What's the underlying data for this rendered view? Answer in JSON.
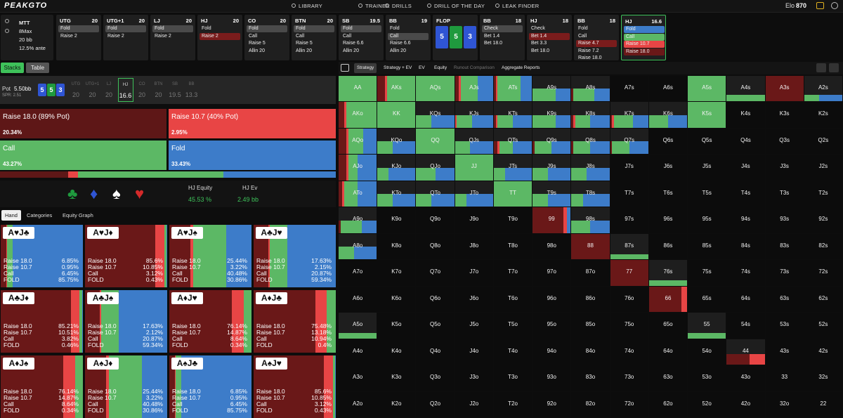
{
  "nav": {
    "logo": "PEAKGTO",
    "links": [
      "LIBRARY",
      "TRAINER",
      "DRILLS",
      "DRILL OF THE DAY",
      "LEAK FINDER"
    ],
    "elo_label": "Elo",
    "elo": "870"
  },
  "game": [
    "MTT",
    "8Max",
    "20 bb",
    "12.5% ante"
  ],
  "action_cards": [
    {
      "pos": "UTG",
      "stack": "20",
      "actions": [
        "Fold",
        "Raise 2"
      ],
      "colors": [
        "#4a4a4a",
        null
      ]
    },
    {
      "pos": "UTG+1",
      "stack": "20",
      "actions": [
        "Fold",
        "Raise 2"
      ],
      "colors": [
        "#4a4a4a",
        null
      ]
    },
    {
      "pos": "LJ",
      "stack": "20",
      "actions": [
        "Fold",
        "Raise 2"
      ],
      "colors": [
        "#4a4a4a",
        null
      ]
    },
    {
      "pos": "HJ",
      "stack": "20",
      "actions": [
        "Fold",
        "Raise 2"
      ],
      "colors": [
        null,
        "#7a1c1c"
      ]
    },
    {
      "pos": "CO",
      "stack": "20",
      "actions": [
        "Fold",
        "Call",
        "Raise 5",
        "Allin 20"
      ],
      "colors": [
        "#4a4a4a",
        null,
        null,
        null
      ]
    },
    {
      "pos": "BTN",
      "stack": "20",
      "actions": [
        "Fold",
        "Call",
        "Raise 5",
        "Allin 20"
      ],
      "colors": [
        "#4a4a4a",
        null,
        null,
        null
      ]
    },
    {
      "pos": "SB",
      "stack": "19.5",
      "actions": [
        "Fold",
        "Call",
        "Raise 6.6",
        "Allin 20"
      ],
      "colors": [
        "#4a4a4a",
        null,
        null,
        null
      ]
    },
    {
      "pos": "BB",
      "stack": "19",
      "actions": [
        "Fold",
        "Call",
        "Raise 6.6",
        "Allin 20"
      ],
      "colors": [
        null,
        "#4a4a4a",
        null,
        null
      ]
    },
    {
      "pos": "FLOP",
      "cards": [
        "5",
        "5",
        "3"
      ],
      "card_colors": [
        "#2f55d4",
        "#1f9a3e",
        "#2f55d4"
      ]
    },
    {
      "pos": "BB",
      "stack": "18",
      "actions": [
        "Check",
        "Bet 1.4",
        "Bet 18.0"
      ],
      "colors": [
        "#4a4a4a",
        null,
        null
      ]
    },
    {
      "pos": "HJ",
      "stack": "18",
      "actions": [
        "Check",
        "Bet 1.4",
        "Bet 3.3",
        "Bet 18.0"
      ],
      "colors": [
        null,
        "#7a1c1c",
        null,
        null
      ]
    },
    {
      "pos": "BB",
      "stack": "18",
      "actions": [
        "Fold",
        "Call",
        "Raise 4.7",
        "Raise 7.2",
        "Raise 18.0"
      ],
      "colors": [
        null,
        null,
        "#7a1c1c",
        null,
        null
      ]
    },
    {
      "pos": "HJ",
      "stack": "16.6",
      "actions": [
        "Fold",
        "Call",
        "Raise 10.7",
        "Raise 18.0"
      ],
      "colors": [
        "#3d7cc9",
        "#5cb865",
        "#e84545",
        "#6a1818"
      ],
      "current": true
    }
  ],
  "left_tabs": [
    "Stacks",
    "Table"
  ],
  "pot": {
    "label": "Pot",
    "value": "5.50bb",
    "spr": "SPR: 2.51",
    "cards": [
      "5",
      "5",
      "3"
    ],
    "card_colors": [
      "#2f55d4",
      "#1f9a3e",
      "#2f55d4"
    ],
    "seats": [
      {
        "pos": "UTG",
        "stack": "20"
      },
      {
        "pos": "UTG+1",
        "stack": "20"
      },
      {
        "pos": "LJ",
        "stack": "20"
      },
      {
        "pos": "HJ",
        "stack": "16.6"
      },
      {
        "pos": "CO",
        "stack": "20"
      },
      {
        "pos": "BTN",
        "stack": "20"
      },
      {
        "pos": "SB",
        "stack": "19.5"
      },
      {
        "pos": "BB",
        "stack": "13.3"
      }
    ],
    "active_seat": 3
  },
  "strategy": [
    {
      "name": "Raise 18.0 (89% Pot)",
      "value": 20.34,
      "label": "20.34%",
      "color": "#5e1717"
    },
    {
      "name": "Raise 10.7 (40% Pot)",
      "value": 2.95,
      "label": "2.95%",
      "color": "#e84545"
    },
    {
      "name": "Call",
      "value": 43.27,
      "label": "43.27%",
      "color": "#5cb865"
    },
    {
      "name": "Fold",
      "value": 33.43,
      "label": "33.43%",
      "color": "#3d7cc9"
    }
  ],
  "equity": {
    "suits": [
      "♣",
      "♦",
      "♠",
      "♥"
    ],
    "suit_colors": [
      "#1f9a3e",
      "#2f55d4",
      "#ffffff",
      "#d42a2a"
    ],
    "equity_label": "HJ Equity",
    "equity": "45.53 %",
    "ev_label": "HJ Ev",
    "ev": "2.49 bb"
  },
  "hand_tabs": [
    "Hand",
    "Categories",
    "Equity Graph"
  ],
  "combos": {
    "row_labels": [
      "Raise 18.0",
      "Raise 10.7",
      "Call",
      "FOLD"
    ],
    "hands": [
      {
        "hand": "A♥J♣",
        "values": [
          6.85,
          0.95,
          6.45,
          85.75
        ],
        "value_labels": [
          "6.85%",
          "0.95%",
          "6.45%",
          "85.75%"
        ]
      },
      {
        "hand": "A♥J♦",
        "values": [
          85.6,
          10.85,
          3.12,
          0.43
        ],
        "value_labels": [
          "85.6%",
          "10.85%",
          "3.12%",
          "0.43%"
        ]
      },
      {
        "hand": "A♥J♠",
        "values": [
          25.44,
          3.22,
          40.48,
          30.86
        ],
        "value_labels": [
          "25.44%",
          "3.22%",
          "40.48%",
          "30.86%"
        ]
      },
      {
        "hand": "A♣J♥",
        "values": [
          17.63,
          2.15,
          20.87,
          59.34
        ],
        "value_labels": [
          "17.63%",
          "2.15%",
          "20.87%",
          "59.34%"
        ]
      },
      {
        "hand": "A♣J♦",
        "values": [
          85.21,
          10.51,
          3.82,
          0.46
        ],
        "value_labels": [
          "85.21%",
          "10.51%",
          "3.82%",
          "0.46%"
        ]
      },
      {
        "hand": "A♣J♠",
        "values": [
          17.63,
          2.12,
          20.87,
          59.34
        ],
        "value_labels": [
          "17.63%",
          "2.12%",
          "20.87%",
          "59.34%"
        ]
      },
      {
        "hand": "A♦J♥",
        "values": [
          76.14,
          14.87,
          8.64,
          0.34
        ],
        "value_labels": [
          "76.14%",
          "14.87%",
          "8.64%",
          "0.34%"
        ]
      },
      {
        "hand": "A♦J♣",
        "values": [
          75.48,
          13.18,
          10.94,
          0.4
        ],
        "value_labels": [
          "75.48%",
          "13.18%",
          "10.94%",
          "0.4%"
        ]
      },
      {
        "hand": "A♦J♠",
        "values": [
          76.14,
          14.87,
          8.64,
          0.34
        ],
        "value_labels": [
          "76.14%",
          "14.87%",
          "8.64%",
          "0.34%"
        ]
      },
      {
        "hand": "A♠J♦",
        "values": [
          25.44,
          3.22,
          40.48,
          30.86
        ],
        "value_labels": [
          "25.44%",
          "3.22%",
          "40.48%",
          "30.86%"
        ]
      },
      {
        "hand": "A♠J♣",
        "values": [
          6.85,
          0.95,
          6.45,
          85.75
        ],
        "value_labels": [
          "6.85%",
          "0.95%",
          "6.45%",
          "85.75%"
        ]
      },
      {
        "hand": "A♠J♥",
        "values": [
          85.6,
          10.85,
          3.12,
          0.43
        ],
        "value_labels": [
          "85.6%",
          "10.85%",
          "3.12%",
          "0.43%"
        ]
      }
    ]
  },
  "right_tabs": [
    "Strategy",
    "Strategy + EV",
    "EV",
    "Equity",
    "Runout Comparison",
    "Aggregate Reports"
  ],
  "grid": {
    "labels": [
      [
        "AA",
        "AKs",
        "AQs",
        "AJs",
        "ATs",
        "A9s",
        "A8s",
        "A7s",
        "A6s",
        "A5s",
        "A4s",
        "A3s",
        "A2s"
      ],
      [
        "AKo",
        "KK",
        "KQs",
        "KJs",
        "KTs",
        "K9s",
        "K8s",
        "K7s",
        "K6s",
        "K5s",
        "K4s",
        "K3s",
        "K2s"
      ],
      [
        "AQo",
        "KQo",
        "QQ",
        "QJs",
        "QTs",
        "Q9s",
        "Q8s",
        "Q7s",
        "Q6s",
        "Q5s",
        "Q4s",
        "Q3s",
        "Q2s"
      ],
      [
        "AJo",
        "KJo",
        "QJo",
        "JJ",
        "JTs",
        "J9s",
        "J8s",
        "J7s",
        "J6s",
        "J5s",
        "J4s",
        "J3s",
        "J2s"
      ],
      [
        "ATo",
        "KTo",
        "QTo",
        "JTo",
        "TT",
        "T9s",
        "T8s",
        "T7s",
        "T6s",
        "T5s",
        "T4s",
        "T3s",
        "T2s"
      ],
      [
        "A9o",
        "K9o",
        "Q9o",
        "J9o",
        "T9o",
        "99",
        "98s",
        "97s",
        "96s",
        "95s",
        "94s",
        "93s",
        "92s"
      ],
      [
        "A8o",
        "K8o",
        "Q8o",
        "J8o",
        "T8o",
        "98o",
        "88",
        "87s",
        "86s",
        "85s",
        "84s",
        "83s",
        "82s"
      ],
      [
        "A7o",
        "K7o",
        "Q7o",
        "J7o",
        "T7o",
        "97o",
        "87o",
        "77",
        "76s",
        "75s",
        "74s",
        "73s",
        "72s"
      ],
      [
        "A6o",
        "K6o",
        "Q6o",
        "J6o",
        "T6o",
        "96o",
        "86o",
        "76o",
        "66",
        "65s",
        "64s",
        "63s",
        "62s"
      ],
      [
        "A5o",
        "K5o",
        "Q5o",
        "J5o",
        "T5o",
        "95o",
        "85o",
        "75o",
        "65o",
        "55",
        "54s",
        "53s",
        "52s"
      ],
      [
        "A4o",
        "K4o",
        "Q4o",
        "J4o",
        "T4o",
        "94o",
        "84o",
        "74o",
        "64o",
        "54o",
        "44",
        "43s",
        "42s"
      ],
      [
        "A3o",
        "K3o",
        "Q3o",
        "J3o",
        "T3o",
        "93o",
        "83o",
        "73o",
        "63o",
        "53o",
        "43o",
        "33",
        "32s"
      ],
      [
        "A2o",
        "K2o",
        "Q2o",
        "J2o",
        "T2o",
        "92o",
        "82o",
        "72o",
        "62o",
        "52o",
        "42o",
        "32o",
        "22"
      ]
    ],
    "strategy": [
      [
        [
          0,
          0,
          100,
          0,
          100
        ],
        [
          20,
          5,
          75,
          0,
          100
        ],
        [
          0,
          0,
          100,
          0,
          100
        ],
        [
          10,
          5,
          45,
          40,
          100
        ],
        [
          5,
          5,
          60,
          30,
          100
        ],
        [
          0,
          0,
          60,
          40,
          50
        ],
        [
          5,
          0,
          55,
          40,
          50
        ],
        null,
        null,
        [
          0,
          0,
          100,
          0,
          100
        ],
        [
          0,
          0,
          100,
          0,
          25
        ],
        [
          100,
          0,
          0,
          0,
          100
        ],
        [
          0,
          0,
          40,
          60,
          25
        ]
      ],
      [
        [
          15,
          5,
          80,
          0,
          100
        ],
        [
          0,
          0,
          100,
          0,
          100
        ],
        [
          0,
          0,
          40,
          60,
          50
        ],
        [
          0,
          5,
          40,
          55,
          50
        ],
        [
          5,
          5,
          40,
          50,
          50
        ],
        [
          0,
          0,
          60,
          40,
          50
        ],
        [
          5,
          5,
          40,
          50,
          50
        ],
        [
          5,
          5,
          50,
          40,
          50
        ],
        [
          0,
          0,
          50,
          50,
          50
        ],
        [
          0,
          0,
          100,
          0,
          100
        ],
        null,
        null,
        null
      ],
      [
        [
          20,
          5,
          40,
          35,
          100
        ],
        [
          0,
          0,
          40,
          60,
          50
        ],
        [
          0,
          0,
          100,
          0,
          100
        ],
        [
          0,
          0,
          40,
          60,
          50
        ],
        [
          10,
          5,
          35,
          50,
          50
        ],
        [
          5,
          0,
          45,
          50,
          50
        ],
        [
          5,
          0,
          45,
          50,
          50
        ],
        [
          5,
          0,
          45,
          50,
          50
        ],
        null,
        null,
        null,
        null,
        null
      ],
      [
        [
          20,
          5,
          25,
          50,
          100
        ],
        [
          0,
          0,
          30,
          70,
          50
        ],
        [
          0,
          0,
          50,
          50,
          50
        ],
        [
          0,
          0,
          100,
          0,
          100
        ],
        [
          0,
          0,
          30,
          70,
          50
        ],
        [
          0,
          0,
          40,
          60,
          50
        ],
        [
          0,
          0,
          40,
          60,
          50
        ],
        null,
        null,
        null,
        null,
        null,
        null
      ],
      [
        [
          10,
          5,
          35,
          50,
          100
        ],
        [
          0,
          0,
          40,
          60,
          50
        ],
        [
          0,
          0,
          40,
          60,
          50
        ],
        [
          0,
          0,
          30,
          70,
          50
        ],
        [
          0,
          0,
          100,
          0,
          100
        ],
        [
          0,
          0,
          40,
          60,
          50
        ],
        [
          0,
          0,
          30,
          70,
          50
        ],
        null,
        null,
        null,
        null,
        null,
        null
      ],
      [
        [
          5,
          0,
          55,
          40,
          50
        ],
        null,
        null,
        null,
        null,
        [
          80,
          10,
          0,
          10,
          100
        ],
        [
          0,
          0,
          50,
          50,
          50
        ],
        null,
        null,
        null,
        null,
        null,
        null
      ],
      [
        [
          0,
          0,
          40,
          60,
          50
        ],
        null,
        null,
        null,
        null,
        null,
        [
          100,
          0,
          0,
          0,
          100
        ],
        [
          0,
          0,
          100,
          0,
          20
        ],
        null,
        null,
        null,
        null,
        null
      ],
      [
        null,
        null,
        null,
        null,
        null,
        null,
        null,
        [
          100,
          0,
          0,
          0,
          100
        ],
        [
          0,
          0,
          100,
          0,
          20
        ],
        null,
        null,
        null,
        null
      ],
      [
        null,
        null,
        null,
        null,
        null,
        null,
        null,
        null,
        [
          85,
          15,
          0,
          0,
          100
        ],
        null,
        null,
        null,
        null
      ],
      [
        [
          0,
          0,
          100,
          0,
          20
        ],
        null,
        null,
        null,
        null,
        null,
        null,
        null,
        null,
        [
          0,
          0,
          100,
          0,
          20
        ],
        null,
        null,
        null
      ],
      [
        null,
        null,
        null,
        null,
        null,
        null,
        null,
        null,
        null,
        null,
        [
          60,
          40,
          0,
          0,
          40
        ],
        null,
        null
      ],
      [
        null,
        null,
        null,
        null,
        null,
        null,
        null,
        null,
        null,
        null,
        null,
        null,
        null
      ],
      [
        null,
        null,
        null,
        null,
        null,
        null,
        null,
        null,
        null,
        null,
        null,
        null,
        null
      ]
    ],
    "colors": [
      "#6a1818",
      "#e84545",
      "#5cb865",
      "#3d7cc9"
    ]
  }
}
